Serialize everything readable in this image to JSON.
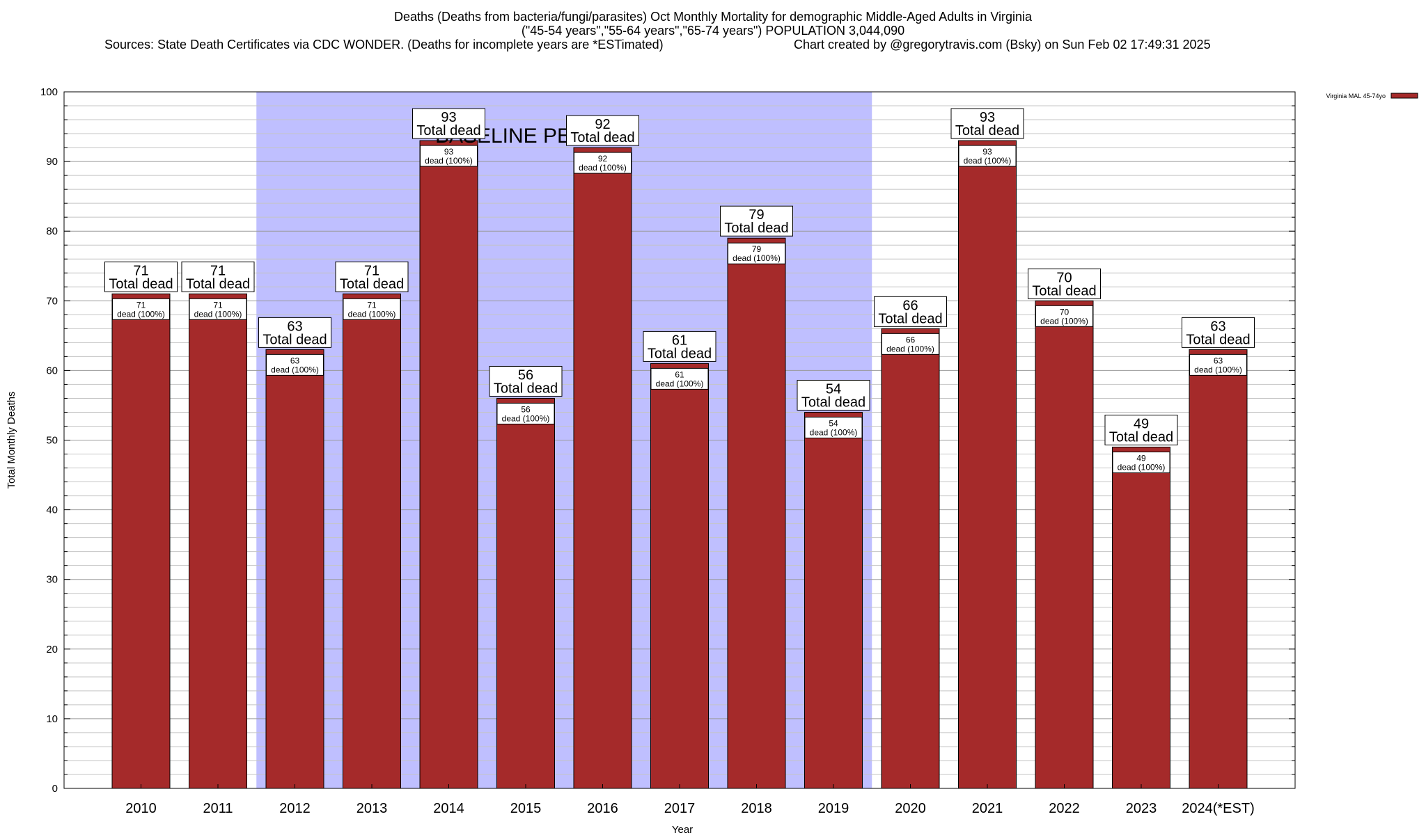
{
  "header": {
    "title_line1": "Deaths (Deaths from bacteria/fungi/parasites) Oct Monthly Mortality for demographic Middle-Aged Adults in Virginia",
    "title_line2": "(\"45-54 years\",\"55-64 years\",\"65-74 years\") POPULATION 3,044,090",
    "sources": "Sources: State Death Certificates via CDC WONDER. (Deaths for incomplete years are *ESTimated)",
    "credit": "Chart created by @gregorytravis.com (Bsky) on Sun Feb 02 17:49:31 2025"
  },
  "chart_data": {
    "type": "bar",
    "categories": [
      "2010",
      "2011",
      "2012",
      "2013",
      "2014",
      "2015",
      "2016",
      "2017",
      "2018",
      "2019",
      "2020",
      "2021",
      "2022",
      "2023",
      "2024(*EST)"
    ],
    "series": [
      {
        "name": "Virginia MAL 45-74yo",
        "values": [
          71,
          71,
          63,
          71,
          93,
          56,
          92,
          61,
          79,
          54,
          66,
          93,
          70,
          49,
          63
        ],
        "color": "#a52a2a"
      }
    ],
    "xlabel": "Year",
    "ylabel": "Total Monthly Deaths",
    "ylim": [
      0,
      100
    ],
    "yticks": [
      0,
      10,
      20,
      30,
      40,
      50,
      60,
      70,
      80,
      90,
      100
    ],
    "grid": true,
    "legend_position": "top-right",
    "baseline_period": {
      "label": "BASELINE PERIOD",
      "from": "2012",
      "to": "2019",
      "color": "#bfbfff"
    },
    "top_label_suffix": "Total dead",
    "inner_label_suffix": "dead (100%)"
  }
}
